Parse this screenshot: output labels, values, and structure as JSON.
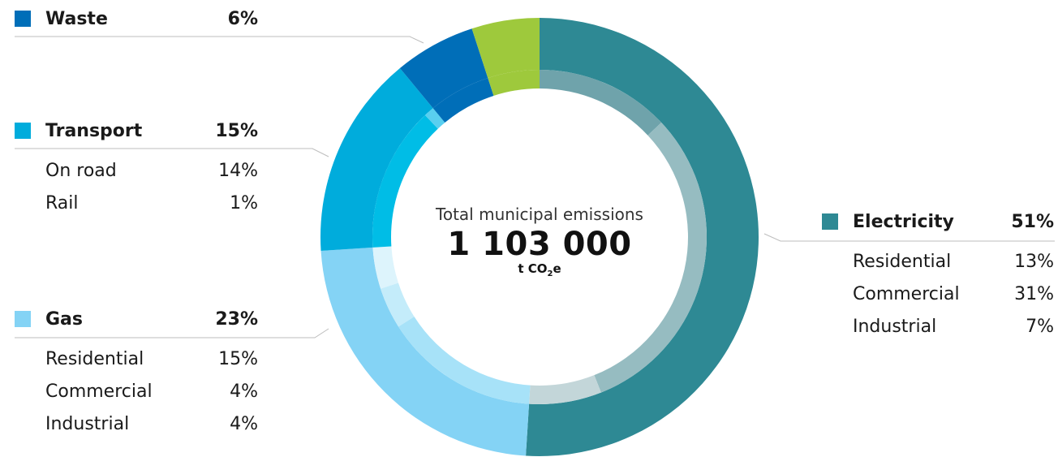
{
  "chart_data": {
    "type": "donut",
    "total": {
      "label": "Total municipal emissions",
      "value": "1 103 000",
      "unit_pre": "t CO",
      "unit_sub": "2",
      "unit_post": "e"
    },
    "series": [
      {
        "key": "electricity",
        "name": "Electricity",
        "value": 51,
        "pct_label": "51%",
        "color": "#2e8994",
        "inner": [
          {
            "name": "Residential",
            "value": 13,
            "pct_label": "13%",
            "color": "#6fa3ab"
          },
          {
            "name": "Commercial",
            "value": 31,
            "pct_label": "31%",
            "color": "#96bcc1"
          },
          {
            "name": "Industrial",
            "value": 7,
            "pct_label": "7%",
            "color": "#c3d6d9"
          }
        ]
      },
      {
        "key": "gas",
        "name": "Gas",
        "value": 23,
        "pct_label": "23%",
        "color": "#84d3f5",
        "inner": [
          {
            "name": "Residential",
            "value": 15,
            "pct_label": "15%",
            "color": "#a7e2f8"
          },
          {
            "name": "Commercial",
            "value": 4,
            "pct_label": "4%",
            "color": "#c4ecfa"
          },
          {
            "name": "Industrial",
            "value": 4,
            "pct_label": "4%",
            "color": "#ddf4fc"
          }
        ]
      },
      {
        "key": "transport",
        "name": "Transport",
        "value": 15,
        "pct_label": "15%",
        "color": "#00acdc",
        "inner": [
          {
            "name": "On road",
            "value": 14,
            "pct_label": "14%",
            "color": "#00bde6"
          },
          {
            "name": "Rail",
            "value": 1,
            "pct_label": "1%",
            "color": "#59cff0"
          }
        ]
      },
      {
        "key": "waste",
        "name": "Waste",
        "value": 6,
        "pct_label": "6%",
        "color": "#006eb8",
        "inner": []
      },
      {
        "key": "other",
        "name": "",
        "value": 5,
        "pct_label": "",
        "color": "#9ec93c",
        "inner": []
      }
    ]
  }
}
